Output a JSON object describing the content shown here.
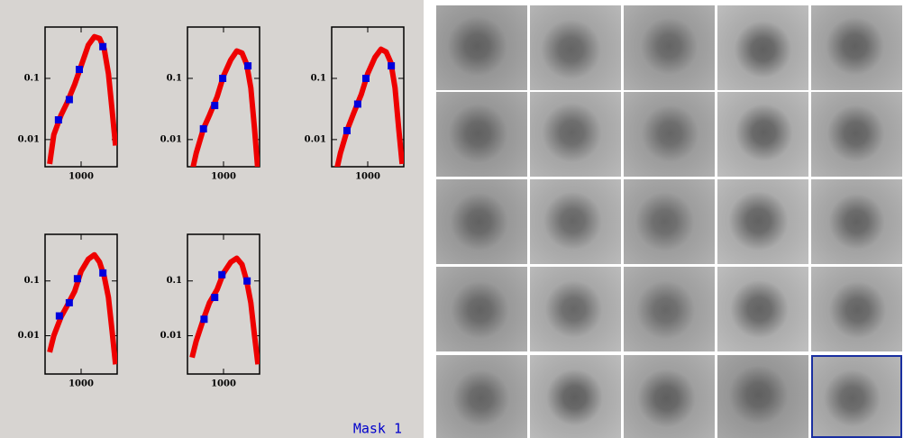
{
  "chart_data": [
    {
      "type": "line",
      "x": [
        450,
        500,
        600,
        700,
        850,
        1000,
        1200,
        1400,
        1600,
        1800,
        2000,
        2200,
        2400
      ],
      "values": [
        0.004,
        0.012,
        0.025,
        0.04,
        0.08,
        0.16,
        0.35,
        0.48,
        0.45,
        0.3,
        0.12,
        0.03,
        0.008
      ],
      "color": "#ee0000",
      "markers": {
        "x": [
          562,
          741,
          955,
          1738
        ],
        "values": [
          0.021,
          0.045,
          0.14,
          0.33
        ],
        "color": "#0000dd"
      },
      "xlim": [
        400,
        2500
      ],
      "ylim": [
        0.0036,
        0.69
      ],
      "xticks": [
        1000
      ],
      "yticks": [
        0.01,
        0.1
      ],
      "log_x": true,
      "log_y": true
    },
    {
      "type": "line",
      "x": [
        450,
        500,
        600,
        700,
        850,
        1000,
        1200,
        1400,
        1600,
        1800,
        2000,
        2200,
        2400
      ],
      "values": [
        0.003,
        0.006,
        0.015,
        0.025,
        0.05,
        0.11,
        0.2,
        0.28,
        0.26,
        0.17,
        0.07,
        0.015,
        0.003
      ],
      "color": "#ee0000",
      "markers": {
        "x": [
          600,
          800,
          980,
          1860
        ],
        "values": [
          0.015,
          0.036,
          0.1,
          0.16
        ],
        "color": "#0000dd"
      },
      "xlim": [
        400,
        2500
      ],
      "ylim": [
        0.0036,
        0.69
      ],
      "xticks": [
        1000
      ],
      "yticks": [
        0.01,
        0.1
      ],
      "log_x": true,
      "log_y": true
    },
    {
      "type": "line",
      "x": [
        450,
        500,
        600,
        700,
        850,
        1000,
        1200,
        1400,
        1600,
        1800,
        2000,
        2200,
        2400
      ],
      "values": [
        0.003,
        0.006,
        0.015,
        0.027,
        0.055,
        0.12,
        0.22,
        0.3,
        0.27,
        0.18,
        0.07,
        0.015,
        0.004
      ],
      "color": "#ee0000",
      "markers": {
        "x": [
          590,
          775,
          955,
          1820
        ],
        "values": [
          0.014,
          0.038,
          0.1,
          0.16
        ],
        "color": "#0000dd"
      },
      "xlim": [
        400,
        2500
      ],
      "ylim": [
        0.0036,
        0.69
      ],
      "xticks": [
        1000
      ],
      "yticks": [
        0.01,
        0.1
      ],
      "log_x": true,
      "log_y": true
    },
    {
      "type": "line",
      "x": [
        450,
        500,
        600,
        700,
        850,
        1000,
        1200,
        1400,
        1600,
        1800,
        2000,
        2200,
        2400
      ],
      "values": [
        0.005,
        0.01,
        0.022,
        0.035,
        0.065,
        0.15,
        0.25,
        0.3,
        0.22,
        0.12,
        0.05,
        0.012,
        0.003
      ],
      "color": "#ee0000",
      "markers": {
        "x": [
          575,
          740,
          910,
          1740
        ],
        "values": [
          0.023,
          0.04,
          0.11,
          0.14
        ],
        "color": "#0000dd"
      },
      "xlim": [
        400,
        2500
      ],
      "ylim": [
        0.002,
        0.71
      ],
      "xticks": [
        1000
      ],
      "yticks": [
        0.01,
        0.1
      ],
      "log_x": true,
      "log_y": true
    },
    {
      "type": "line",
      "x": [
        450,
        500,
        600,
        700,
        850,
        1000,
        1200,
        1400,
        1600,
        1800,
        2000,
        2200,
        2400
      ],
      "values": [
        0.004,
        0.008,
        0.02,
        0.04,
        0.07,
        0.14,
        0.22,
        0.26,
        0.2,
        0.1,
        0.04,
        0.01,
        0.003
      ],
      "color": "#ee0000",
      "markers": {
        "x": [
          610,
          800,
          960,
          1820
        ],
        "values": [
          0.02,
          0.05,
          0.13,
          0.1
        ],
        "color": "#0000dd"
      },
      "xlim": [
        400,
        2500
      ],
      "ylim": [
        0.002,
        0.71
      ],
      "xticks": [
        1000
      ],
      "yticks": [
        0.01,
        0.1
      ],
      "log_x": true,
      "log_y": true
    }
  ],
  "mask_label": "Mask 1"
}
